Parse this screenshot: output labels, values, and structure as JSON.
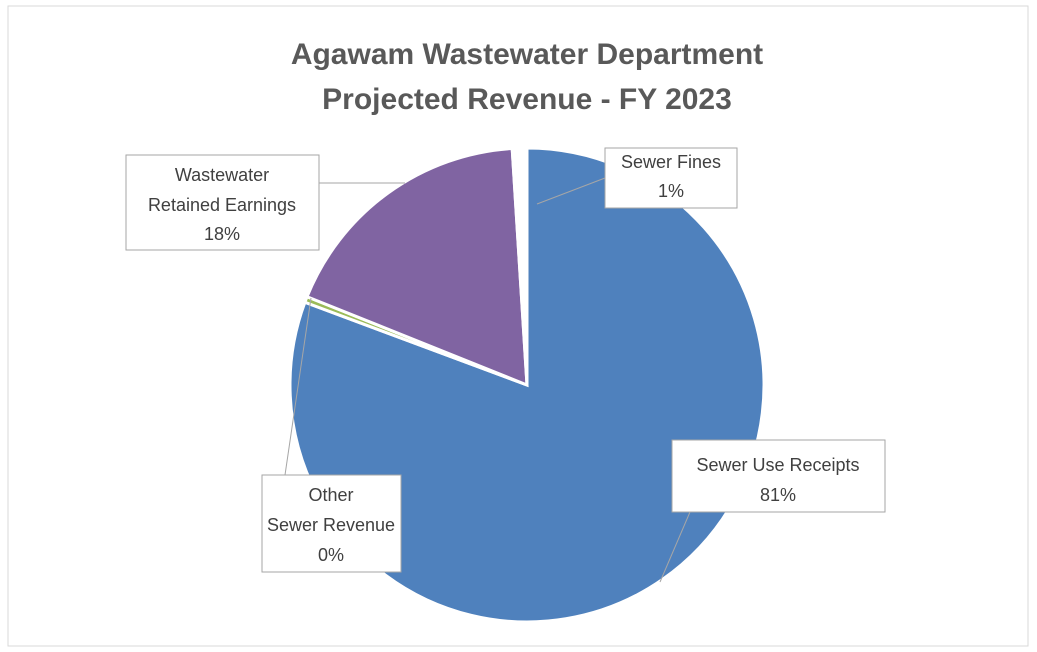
{
  "chart_data": {
    "type": "pie",
    "title": [
      "Agawam Wastewater Department",
      "Projected Revenue - FY 2023"
    ],
    "categories": [
      "Sewer Use Receipts",
      "Other Sewer Revenue",
      "Wastewater Retained Earnings",
      "Sewer Fines"
    ],
    "values": [
      81,
      0.4,
      18,
      1
    ],
    "value_labels": [
      "81%",
      "0%",
      "18%",
      "1%"
    ],
    "colors": [
      "#4f81bd",
      "#9bbb59",
      "#8064a2",
      "#ffffff"
    ]
  }
}
